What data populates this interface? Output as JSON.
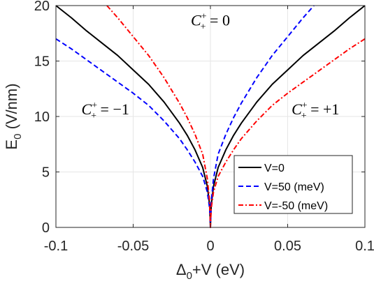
{
  "chart_data": {
    "type": "line",
    "xlabel": "Δ0+V (eV)",
    "ylabel": "E0 (V/nm)",
    "xlim": [
      -0.1,
      0.1
    ],
    "ylim": [
      0,
      20
    ],
    "x_ticks": [
      -0.1,
      -0.05,
      0,
      0.05,
      0.1
    ],
    "x_tick_labels": [
      "-0.1",
      "-0.05",
      "0",
      "0.05",
      "0.1"
    ],
    "y_ticks": [
      0,
      5,
      10,
      15,
      20
    ],
    "y_tick_labels": [
      "0",
      "5",
      "10",
      "15",
      "20"
    ],
    "grid": true,
    "legend_position": "lower-right",
    "series": [
      {
        "name": "V=0",
        "color": "#000000",
        "style": "solid",
        "x": [
          -0.1,
          -0.09,
          -0.08,
          -0.07,
          -0.06,
          -0.05,
          -0.04,
          -0.03,
          -0.02,
          -0.015,
          -0.01,
          -0.005,
          -0.002,
          -0.0005,
          0,
          0.0005,
          0.002,
          0.005,
          0.01,
          0.015,
          0.02,
          0.03,
          0.04,
          0.05,
          0.06,
          0.07,
          0.08,
          0.09,
          0.1
        ],
        "y": [
          20,
          18.9,
          17.7,
          16.6,
          15.5,
          14.2,
          12.9,
          11.3,
          9.4,
          8.3,
          7.0,
          5.4,
          3.7,
          2.0,
          0,
          2.0,
          3.7,
          5.4,
          7.0,
          8.3,
          9.4,
          11.3,
          12.9,
          14.2,
          15.5,
          16.6,
          17.7,
          18.9,
          20
        ]
      },
      {
        "name": "V=50 (meV)",
        "color": "#0000ff",
        "style": "dashed",
        "x": [
          -0.1,
          -0.09,
          -0.08,
          -0.07,
          -0.06,
          -0.05,
          -0.04,
          -0.03,
          -0.02,
          -0.015,
          -0.01,
          -0.005,
          -0.002,
          -0.0005,
          0,
          0.0005,
          0.002,
          0.005,
          0.01,
          0.015,
          0.02,
          0.03,
          0.04,
          0.05,
          0.06,
          0.067
        ],
        "y": [
          17.0,
          16.1,
          15.1,
          14.1,
          13.1,
          12.1,
          11.0,
          9.6,
          8.0,
          7.0,
          5.9,
          4.6,
          3.2,
          1.7,
          0,
          2.3,
          4.4,
          6.6,
          8.4,
          9.9,
          11.2,
          13.5,
          15.5,
          17.2,
          18.9,
          20
        ]
      },
      {
        "name": "V=-50 (meV)",
        "color": "#ff0000",
        "style": "dash-dot",
        "x": [
          -0.067,
          -0.06,
          -0.05,
          -0.04,
          -0.03,
          -0.02,
          -0.015,
          -0.01,
          -0.005,
          -0.002,
          -0.0005,
          0,
          0.0005,
          0.002,
          0.005,
          0.01,
          0.015,
          0.02,
          0.03,
          0.04,
          0.05,
          0.06,
          0.07,
          0.08,
          0.09,
          0.1
        ],
        "y": [
          20,
          18.9,
          17.2,
          15.5,
          13.5,
          11.2,
          9.9,
          8.4,
          6.6,
          4.4,
          2.3,
          0,
          1.7,
          3.2,
          4.6,
          5.9,
          7.0,
          8.0,
          9.6,
          11.0,
          12.1,
          13.1,
          14.1,
          15.1,
          16.1,
          17.0
        ]
      }
    ],
    "annotations": [
      {
        "text": "C+ = 0",
        "label_sub": "+",
        "label_sup": "+",
        "value": "0",
        "x": 0.0,
        "y": 18.2
      },
      {
        "text": "C+ = −1",
        "label_sub": "+",
        "label_sup": "+",
        "value": "−1",
        "x": -0.068,
        "y": 10.2
      },
      {
        "text": "C+ = +1",
        "label_sub": "+",
        "label_sup": "+",
        "value": "+1",
        "x": 0.068,
        "y": 10.2
      }
    ]
  }
}
